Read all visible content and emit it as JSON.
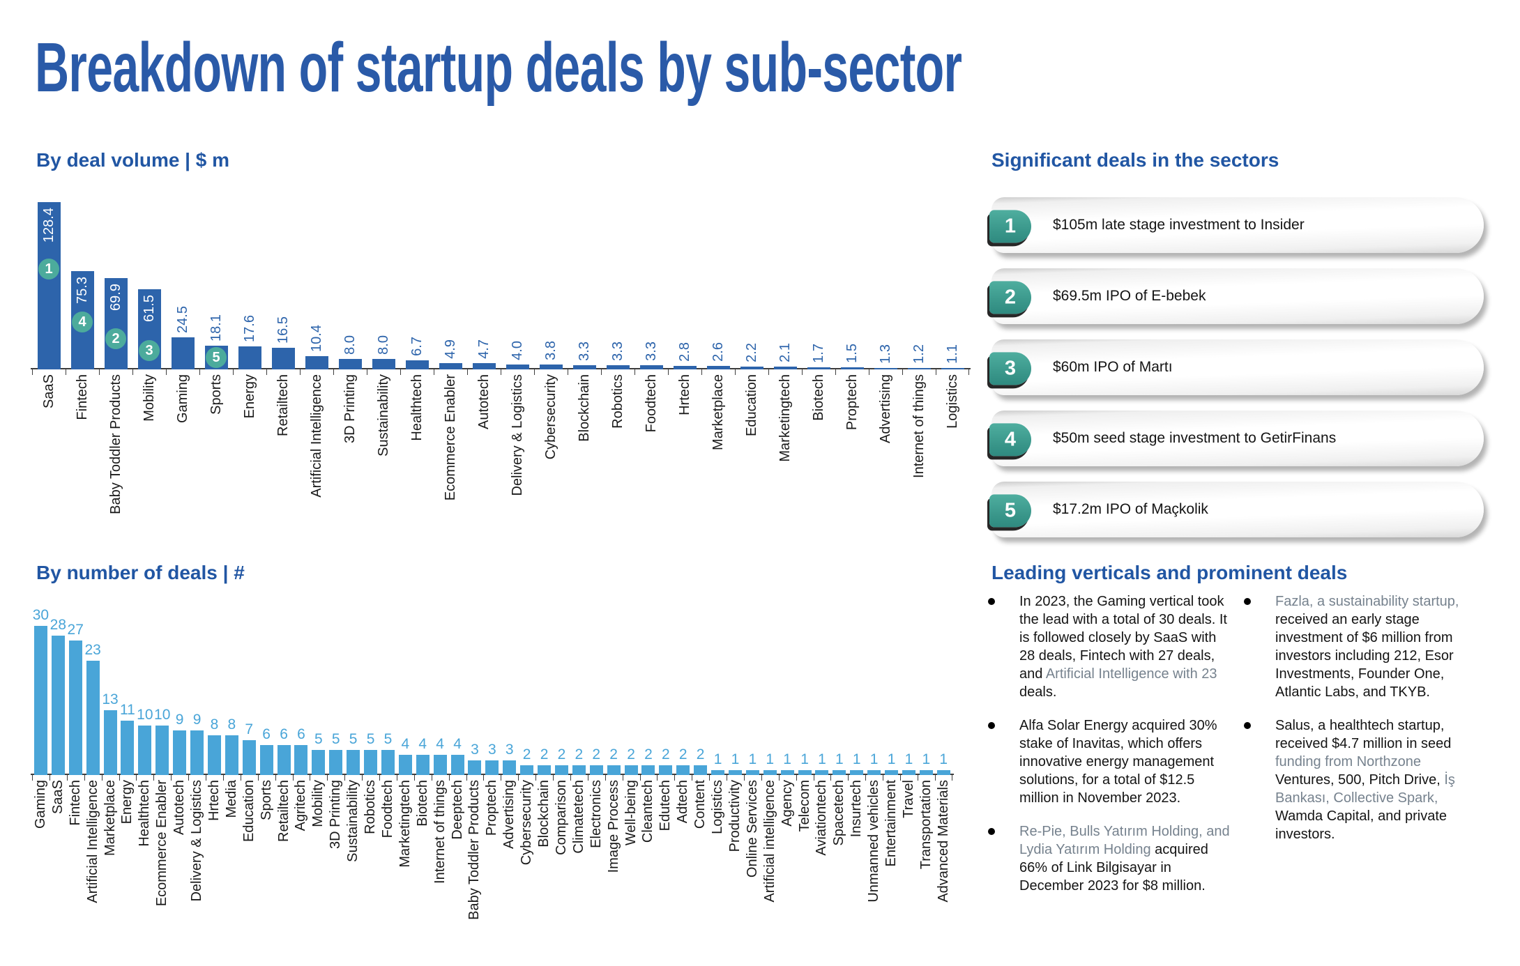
{
  "page": {
    "title": "Breakdown of startup deals by sub-sector"
  },
  "colors": {
    "heading_blue": "#2156a3",
    "title_blue": "#2a5aa8",
    "volume_bar_blue": "#2d64ab",
    "count_bar_sky": "#49a5d8",
    "badge_teal": "#3fa294",
    "rank_dot_teal": "#4cab9c",
    "muted_gray": "#76828e"
  },
  "significant": {
    "heading": "Significant deals in the sectors",
    "items": [
      {
        "rank": "1",
        "text": "$105m late stage investment to Insider"
      },
      {
        "rank": "2",
        "text": "$69.5m IPO of E-bebek"
      },
      {
        "rank": "3",
        "text": "$60m IPO of Martı"
      },
      {
        "rank": "4",
        "text": "$50m seed stage investment to GetirFinans"
      },
      {
        "rank": "5",
        "text": "$17.2m IPO of Maçkolik"
      }
    ]
  },
  "leading": {
    "heading": "Leading verticals and prominent deals",
    "columns": [
      [
        {
          "segments": [
            {
              "text": "In 2023, the Gaming vertical took the lead with a total of 30 deals. It is followed closely by SaaS with 28 deals, Fintech with 27 deals, and ",
              "style": "normal"
            },
            {
              "text": "Artificial Intelligence with 23",
              "style": "muted"
            },
            {
              "text": " deals.",
              "style": "normal"
            }
          ]
        },
        {
          "segments": [
            {
              "text": "Alfa Solar Energy acquired 30% stake of Inavitas, which offers innovative energy management solutions, for a total of $12.5 million in November 2023.",
              "style": "normal"
            }
          ]
        },
        {
          "segments": [
            {
              "text": "Re-Pie, Bulls Yatırım Holding, and Lydia Yatırım Holding",
              "style": "muted"
            },
            {
              "text": " acquired 66% of Link Bilgisayar in December 2023 for $8 million.",
              "style": "normal"
            }
          ]
        }
      ],
      [
        {
          "segments": [
            {
              "text": "Fazla, a sustainability startup,",
              "style": "muted"
            },
            {
              "text": " received an early stage investment of $6 million from investors including 212, Esor Investments, Founder One, Atlantic Labs, and TKYB.",
              "style": "normal"
            }
          ]
        },
        {
          "segments": [
            {
              "text": "Salus, a healthtech startup, received $4.7 million in seed ",
              "style": "normal"
            },
            {
              "text": "funding from Northzone",
              "style": "muted"
            },
            {
              "text": " Ventures, 500, Pitch Drive, ",
              "style": "normal"
            },
            {
              "text": "İş Bankası, Collective Spark,",
              "style": "muted"
            },
            {
              "text": " Wamda Capital, and private investors.",
              "style": "normal"
            }
          ]
        }
      ]
    ]
  },
  "chart_data": [
    {
      "type": "bar",
      "title": "By deal volume | $ m",
      "ylabel": "$ m",
      "ylim": [
        0,
        130
      ],
      "grid": false,
      "legend": "none",
      "bar_color": "#2d64ab",
      "categories": [
        "SaaS",
        "Fintech",
        "Baby Toddler Products",
        "Mobility",
        "Gaming",
        "Sports",
        "Energy",
        "Retailtech",
        "Artificial Intelligence",
        "3D Printing",
        "Sustainability",
        "Healthtech",
        "Ecommerce Enabler",
        "Autotech",
        "Delivery & Logistics",
        "Cybersecurity",
        "Blockchain",
        "Robotics",
        "Foodtech",
        "Hrtech",
        "Marketplace",
        "Education",
        "Marketingtech",
        "Biotech",
        "Proptech",
        "Advertising",
        "Internet of things",
        "Logistics"
      ],
      "values": [
        128.4,
        75.3,
        69.9,
        61.5,
        24.5,
        18.1,
        17.6,
        16.5,
        10.4,
        8.0,
        8.0,
        6.7,
        4.9,
        4.7,
        4.0,
        3.8,
        3.3,
        3.3,
        3.3,
        2.8,
        2.6,
        2.2,
        2.1,
        1.7,
        1.5,
        1.3,
        1.2,
        1.1
      ],
      "value_labels": [
        "128.4",
        "75.3",
        "69.9",
        "61.5",
        "24.5",
        "18.1",
        "17.6",
        "16.5",
        "10.4",
        "8.0",
        "8.0",
        "6.7",
        "4.9",
        "4.7",
        "4.0",
        "3.8",
        "3.3",
        "3.3",
        "3.3",
        "2.8",
        "2.6",
        "2.2",
        "2.1",
        "1.7",
        "1.5",
        "1.3",
        "1.2",
        "1.1"
      ],
      "inside_label_indexes": [
        0,
        1,
        2,
        3
      ],
      "rank_badges": [
        {
          "index": 0,
          "label": "1",
          "from_top": 81
        },
        {
          "index": 1,
          "label": "4",
          "from_top": 58
        },
        {
          "index": 2,
          "label": "2",
          "from_top": 72
        },
        {
          "index": 3,
          "label": "3",
          "from_top": 73
        },
        {
          "index": 5,
          "label": "5",
          "from_top": 2
        }
      ]
    },
    {
      "type": "bar",
      "title": "By number of deals | #",
      "ylabel": "#",
      "ylim": [
        0,
        32
      ],
      "grid": false,
      "legend": "none",
      "bar_color": "#49a5d8",
      "categories": [
        "Gaming",
        "SaaS",
        "Fintech",
        "Artificial Intelligence",
        "Marketplace",
        "Energy",
        "Healthtech",
        "Ecommerce Enabler",
        "Autotech",
        "Delivery & Logistics",
        "Hrtech",
        "Media",
        "Education",
        "Sports",
        "Retailtech",
        "Agritech",
        "Mobility",
        "3D Printing",
        "Sustainability",
        "Robotics",
        "Foodtech",
        "Marketingtech",
        "Biotech",
        "Internet of things",
        "Deeptech",
        "Baby Toddler Products",
        "Proptech",
        "Advertising",
        "Cybersecurity",
        "Blockchain",
        "Comparison",
        "Climatetech",
        "Electronics",
        "Image Process",
        "Well-being",
        "Cleantech",
        "Edutech",
        "Adtech",
        "Content",
        "Logistics",
        "Productivity",
        "Online Services",
        "Artificial intelligence",
        "Agency",
        "Telecom",
        "Aviationtech",
        "Spacetech",
        "Insurtech",
        "Unmanned vehicles",
        "Entertainment",
        "Travel",
        "Transportation",
        "Advanced Materials"
      ],
      "values": [
        30,
        28,
        27,
        23,
        13,
        11,
        10,
        10,
        9,
        9,
        8,
        8,
        7,
        6,
        6,
        6,
        5,
        5,
        5,
        5,
        5,
        4,
        4,
        4,
        4,
        3,
        3,
        3,
        2,
        2,
        2,
        2,
        2,
        2,
        2,
        2,
        2,
        2,
        2,
        1,
        1,
        1,
        1,
        1,
        1,
        1,
        1,
        1,
        1,
        1,
        1,
        1,
        1
      ],
      "value_labels": [
        "30",
        "28",
        "27",
        "23",
        "13",
        "11",
        "10",
        "10",
        "9",
        "9",
        "8",
        "8",
        "7",
        "6",
        "6",
        "6",
        "5",
        "5",
        "5",
        "5",
        "5",
        "4",
        "4",
        "4",
        "4",
        "3",
        "3",
        "3",
        "2",
        "2",
        "2",
        "2",
        "2",
        "2",
        "2",
        "2",
        "2",
        "2",
        "2",
        "1",
        "1",
        "1",
        "1",
        "1",
        "1",
        "1",
        "1",
        "1",
        "1",
        "1",
        "1",
        "1",
        "1"
      ]
    }
  ]
}
